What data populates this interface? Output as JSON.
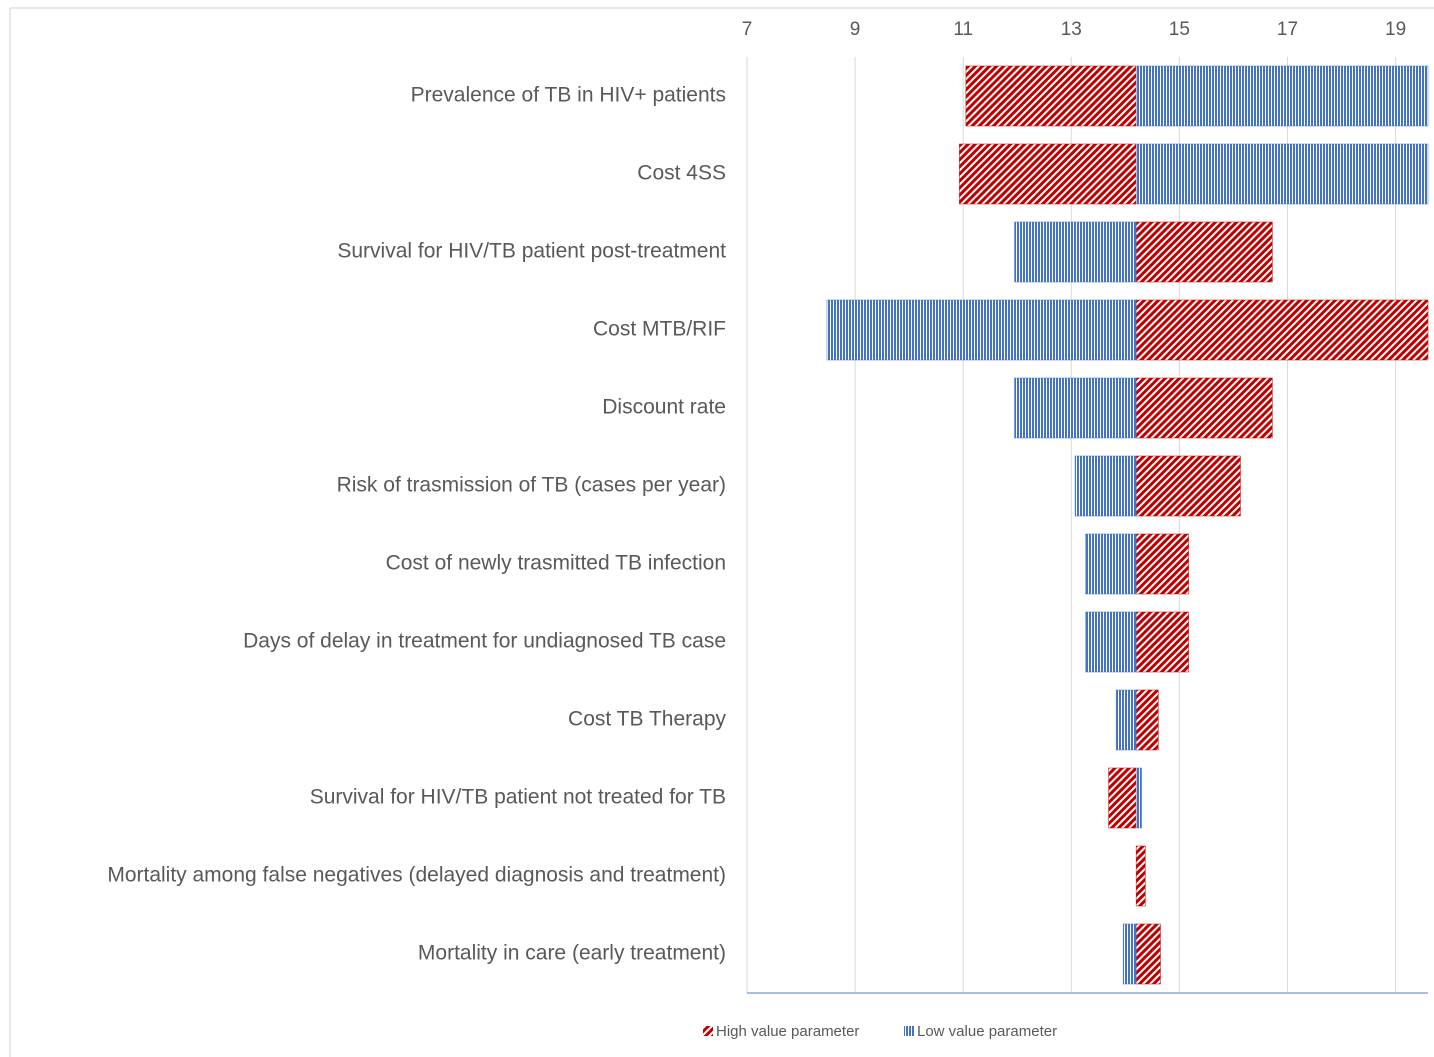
{
  "chart_data": {
    "type": "tornado",
    "categories": [
      "Prevalence of TB in HIV+ patients",
      "Cost 4SS",
      "Survival for HIV/TB patient post-treatment",
      "Cost MTB/RIF",
      "Discount rate",
      "Risk of trasmission of TB (cases per year)",
      "Cost of newly trasmitted TB infection",
      "Days of delay in treatment for undiagnosed TB case",
      "Cost TB Therapy",
      "Survival for HIV/TB patient not treated for TB",
      "Mortality among false negatives (delayed diagnosis and treatment)",
      "Mortality in care (early treatment)"
    ],
    "base": 14.2,
    "series": [
      {
        "name": "High value parameter",
        "color": "#c00000",
        "pattern": "diagonal",
        "values": [
          11.05,
          10.93,
          16.72,
          19.6,
          16.72,
          16.13,
          15.17,
          15.17,
          14.61,
          13.69,
          14.37,
          14.65
        ]
      },
      {
        "name": "Low value parameter",
        "color": "#4472c4",
        "pattern": "vertical",
        "values": [
          19.6,
          19.6,
          11.95,
          8.48,
          11.95,
          13.07,
          13.26,
          13.26,
          13.83,
          14.3,
          14.2,
          13.96
        ]
      }
    ],
    "xlim": [
      7,
      19.6
    ],
    "xticks": [
      7,
      9,
      11,
      13,
      15,
      17,
      19
    ],
    "grid": true
  }
}
